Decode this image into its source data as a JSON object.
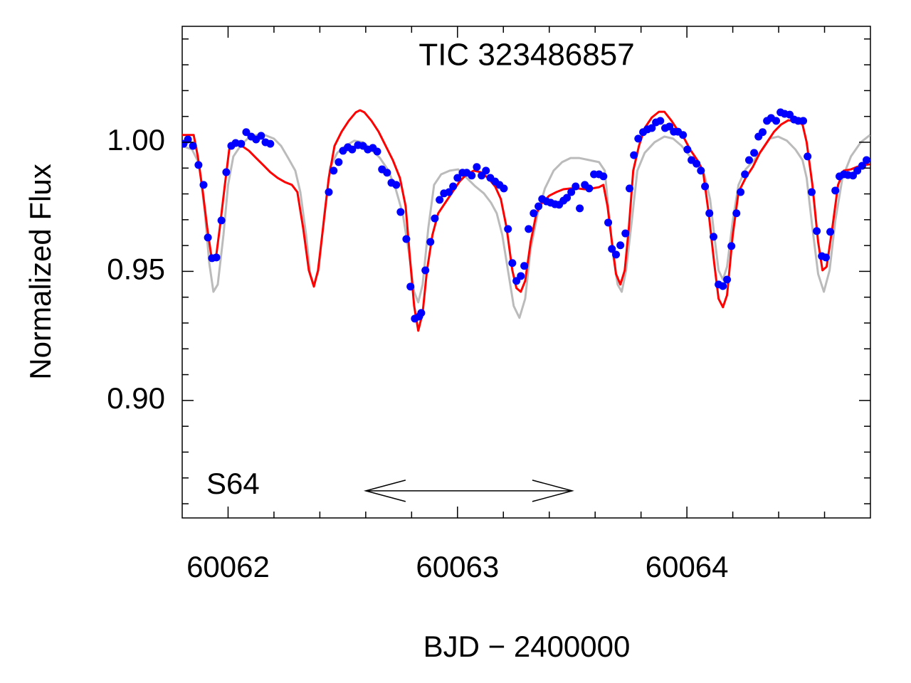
{
  "chart_data": {
    "type": "scatter",
    "title": "TIC 323486857",
    "xlabel": "BJD − 2400000",
    "ylabel": "Normalized Flux",
    "xlim": [
      60061.8,
      60064.8
    ],
    "ylim": [
      0.8545,
      1.0449
    ],
    "xticks": [
      60062,
      60063,
      60064
    ],
    "xminor": [
      60062.2,
      60062.4,
      60062.6,
      60062.8,
      60063.2,
      60063.4,
      60063.6,
      60063.8,
      60064.2,
      60064.4,
      60064.6
    ],
    "yticks": [
      {
        "value": 0.9,
        "label": "0.90"
      },
      {
        "value": 0.95,
        "label": "0.95"
      },
      {
        "value": 1.0,
        "label": "1.00"
      }
    ],
    "yminor": [
      0.86,
      0.87,
      0.88,
      0.89,
      0.91,
      0.92,
      0.93,
      0.94,
      0.96,
      0.97,
      0.98,
      0.99,
      1.01,
      1.02,
      1.03,
      1.04
    ],
    "annotations": [
      {
        "text": "S64"
      }
    ],
    "arrow": {
      "x": [
        60062.6,
        60063.5
      ],
      "y": 0.865
    },
    "series": [
      {
        "type": "scatter",
        "color": "#0000ff",
        "x": [
          60061.806,
          60061.825,
          60061.847,
          60061.871,
          60061.893,
          60061.912,
          60061.93,
          60061.949,
          60061.971,
          60061.992,
          60062.014,
          60062.033,
          60062.057,
          60062.079,
          60062.101,
          60062.122,
          60062.144,
          60062.163,
          60062.184,
          60062.439,
          60062.46,
          60062.482,
          60062.501,
          60062.522,
          60062.541,
          60062.566,
          60062.588,
          60062.609,
          60062.631,
          60062.65,
          60062.671,
          60062.693,
          60062.712,
          60062.733,
          60062.752,
          60062.777,
          60062.795,
          60062.814,
          60062.833,
          60062.842,
          60062.86,
          60062.882,
          60062.901,
          60062.922,
          60062.941,
          60062.963,
          60062.981,
          60063.0,
          60063.022,
          60063.04,
          60063.062,
          60063.084,
          60063.105,
          60063.124,
          60063.143,
          60063.164,
          60063.183,
          60063.202,
          60063.22,
          60063.239,
          60063.257,
          60063.276,
          60063.291,
          60063.31,
          60063.332,
          60063.353,
          60063.369,
          60063.388,
          60063.406,
          60063.425,
          60063.443,
          60063.462,
          60063.477,
          60063.496,
          60063.515,
          60063.533,
          60063.555,
          60063.574,
          60063.595,
          60063.617,
          60063.636,
          60063.657,
          60063.673,
          60063.691,
          60063.71,
          60063.732,
          60063.75,
          60063.769,
          60063.788,
          60063.809,
          60063.828,
          60063.847,
          60063.865,
          60063.884,
          60063.905,
          60063.924,
          60063.943,
          60063.961,
          60063.983,
          60064.002,
          60064.02,
          60064.042,
          60064.061,
          60064.079,
          60064.098,
          60064.116,
          60064.138,
          60064.157,
          60064.175,
          60064.194,
          60064.216,
          60064.234,
          60064.253,
          60064.271,
          60064.293,
          60064.312,
          60064.33,
          60064.349,
          60064.367,
          60064.389,
          60064.408,
          60064.426,
          60064.448,
          60064.467,
          60064.485,
          60064.507,
          60064.526,
          60064.544,
          60064.566,
          60064.588,
          60064.606,
          60064.625,
          60064.647,
          60064.665,
          60064.684,
          60064.702,
          60064.724,
          60064.743,
          60064.764,
          60064.783
        ],
        "values": [
          0.9994,
          1.0011,
          0.9986,
          0.9912,
          0.9835,
          0.9631,
          0.9551,
          0.9554,
          0.9697,
          0.9884,
          0.9986,
          0.9997,
          0.9994,
          1.0039,
          1.0022,
          1.0011,
          1.0025,
          1.0,
          0.9994,
          0.9807,
          0.989,
          0.9923,
          0.9967,
          0.9981,
          0.9972,
          0.9989,
          0.9986,
          0.9972,
          0.9978,
          0.9964,
          0.9895,
          0.9882,
          0.9843,
          0.9835,
          0.973,
          0.9625,
          0.9441,
          0.9317,
          0.9325,
          0.9339,
          0.9504,
          0.9614,
          0.9705,
          0.9777,
          0.9802,
          0.9807,
          0.9829,
          0.9862,
          0.9882,
          0.9882,
          0.9871,
          0.9904,
          0.9871,
          0.989,
          0.9862,
          0.9848,
          0.9835,
          0.9821,
          0.9664,
          0.9532,
          0.9463,
          0.9482,
          0.9521,
          0.9664,
          0.9725,
          0.9752,
          0.978,
          0.9771,
          0.9766,
          0.976,
          0.9758,
          0.9774,
          0.9785,
          0.9807,
          0.9829,
          0.9744,
          0.9835,
          0.9821,
          0.9876,
          0.9876,
          0.9868,
          0.9689,
          0.9587,
          0.9565,
          0.9601,
          0.9647,
          0.9821,
          0.995,
          1.0014,
          1.0039,
          1.005,
          1.0055,
          1.0077,
          1.0083,
          1.0055,
          1.0061,
          1.0041,
          1.0041,
          1.0028,
          0.9972,
          0.9931,
          0.9917,
          0.989,
          0.9829,
          0.9725,
          0.9634,
          0.9449,
          0.9443,
          0.9468,
          0.9598,
          0.9725,
          0.9807,
          0.9876,
          0.9931,
          0.9959,
          1.0022,
          1.0039,
          1.0083,
          1.0094,
          1.0083,
          1.0116,
          1.011,
          1.0107,
          1.0088,
          1.0083,
          1.0083,
          0.9945,
          0.9807,
          0.9656,
          0.9559,
          0.9554,
          0.9653,
          0.9813,
          0.9868,
          0.9876,
          0.9873,
          0.9871,
          0.989,
          0.9909,
          0.9931
        ]
      },
      {
        "type": "line",
        "color": "#bbbbbb",
        "x": [
          60061.8,
          60061.843,
          60061.874,
          60061.899,
          60061.918,
          60061.936,
          60061.955,
          60061.98,
          60062.0,
          60062.023,
          60062.054,
          60062.085,
          60062.122,
          60062.16,
          60062.2,
          60062.231,
          60062.262,
          60062.293,
          60062.315,
          60062.34,
          60062.358,
          60062.374,
          60062.395,
          60062.42,
          60062.445,
          60062.476,
          60062.513,
          60062.55,
          60062.588,
          60062.625,
          60062.662,
          60062.699,
          60062.73,
          60062.761,
          60062.786,
          60062.811,
          60062.829,
          60062.848,
          60062.873,
          60062.898,
          60062.929,
          60062.966,
          60063.003,
          60063.04,
          60063.078,
          60063.115,
          60063.146,
          60063.171,
          60063.195,
          60063.22,
          60063.245,
          60063.27,
          60063.295,
          60063.319,
          60063.35,
          60063.381,
          60063.419,
          60063.456,
          60063.493,
          60063.53,
          60063.574,
          60063.617,
          60063.642,
          60063.66,
          60063.679,
          60063.698,
          60063.716,
          60063.735,
          60063.76,
          60063.784,
          60063.816,
          60063.859,
          60063.902,
          60063.94,
          60063.977,
          60064.014,
          60064.045,
          60064.076,
          60064.101,
          60064.119,
          60064.138,
          60064.157,
          60064.175,
          60064.2,
          60064.225,
          60064.256,
          60064.293,
          60064.33,
          60064.361,
          60064.398,
          60064.436,
          60064.473,
          60064.504,
          60064.522,
          60064.547,
          60064.572,
          60064.597,
          60064.622,
          60064.647,
          60064.678,
          60064.715,
          60064.758,
          60064.798
        ],
        "values": [
          0.9986,
          0.9972,
          0.9917,
          0.9725,
          0.9532,
          0.9421,
          0.9449,
          0.9642,
          0.9835,
          0.9945,
          0.9986,
          1.0014,
          1.0028,
          1.0028,
          1.0014,
          0.9986,
          0.9939,
          0.989,
          0.9807,
          0.9642,
          0.949,
          0.9449,
          0.9504,
          0.9725,
          0.9904,
          0.9959,
          0.9986,
          1.0006,
          1.0,
          0.9972,
          0.9939,
          0.989,
          0.9821,
          0.9725,
          0.9587,
          0.9421,
          0.938,
          0.9449,
          0.9669,
          0.9835,
          0.9876,
          0.989,
          0.9895,
          0.9862,
          0.9829,
          0.9802,
          0.9766,
          0.9725,
          0.9642,
          0.9504,
          0.9366,
          0.932,
          0.9394,
          0.9587,
          0.9725,
          0.9821,
          0.989,
          0.9923,
          0.9939,
          0.9939,
          0.9931,
          0.9923,
          0.989,
          0.9725,
          0.9559,
          0.9449,
          0.9421,
          0.9504,
          0.9697,
          0.989,
          0.9959,
          1.0,
          1.0022,
          1.0014,
          0.9986,
          0.9945,
          0.9917,
          0.9876,
          0.978,
          0.9642,
          0.9504,
          0.9468,
          0.9518,
          0.9697,
          0.9835,
          0.9895,
          0.9931,
          0.9972,
          1.0014,
          1.0022,
          1.0006,
          0.9972,
          0.9931,
          0.9862,
          0.9669,
          0.949,
          0.9421,
          0.9504,
          0.9697,
          0.9862,
          0.9945,
          1.0,
          1.0028
        ]
      },
      {
        "type": "line",
        "color": "#ff0000",
        "x": [
          60061.8,
          60061.85,
          60061.868,
          60061.89,
          60061.909,
          60061.927,
          60061.946,
          60061.964,
          60061.986,
          60062.005,
          60062.029,
          60062.06,
          60062.091,
          60062.122,
          60062.153,
          60062.184,
          60062.216,
          60062.247,
          60062.278,
          60062.302,
          60062.327,
          60062.352,
          60062.374,
          60062.392,
          60062.414,
          60062.439,
          60062.464,
          60062.495,
          60062.526,
          60062.557,
          60062.575,
          60062.594,
          60062.625,
          60062.656,
          60062.687,
          60062.718,
          60062.749,
          60062.774,
          60062.792,
          60062.811,
          60062.829,
          60062.848,
          60062.867,
          60062.891,
          60062.916,
          60062.947,
          60062.978,
          60063.009,
          60063.04,
          60063.071,
          60063.102,
          60063.133,
          60063.164,
          60063.189,
          60063.214,
          60063.239,
          60063.257,
          60063.276,
          60063.295,
          60063.319,
          60063.344,
          60063.369,
          60063.4,
          60063.431,
          60063.462,
          60063.493,
          60063.524,
          60063.555,
          60063.586,
          60063.617,
          60063.636,
          60063.654,
          60063.673,
          60063.691,
          60063.71,
          60063.729,
          60063.747,
          60063.766,
          60063.791,
          60063.816,
          60063.847,
          60063.878,
          60063.902,
          60063.933,
          60063.964,
          60063.989,
          60064.014,
          60064.045,
          60064.07,
          60064.095,
          60064.119,
          60064.138,
          60064.157,
          60064.175,
          60064.2,
          60064.225,
          60064.256,
          60064.287,
          60064.318,
          60064.349,
          60064.38,
          60064.411,
          60064.442,
          60064.473,
          60064.504,
          60064.522,
          60064.547,
          60064.572,
          60064.591,
          60064.609,
          60064.634,
          60064.659,
          60064.684,
          60064.715,
          60064.746,
          60064.777,
          60064.798
        ],
        "values": [
          1.0028,
          1.0028,
          0.9945,
          0.9807,
          0.9669,
          0.9559,
          0.9545,
          0.9669,
          0.9835,
          0.9972,
          0.9994,
          0.9986,
          0.9967,
          0.9939,
          0.9912,
          0.9884,
          0.9862,
          0.9846,
          0.9835,
          0.9807,
          0.9669,
          0.9504,
          0.9441,
          0.9504,
          0.9669,
          0.9862,
          0.9986,
          1.0041,
          1.0083,
          1.0116,
          1.0124,
          1.0116,
          1.0083,
          1.0041,
          0.9986,
          0.9931,
          0.9862,
          0.9752,
          0.9559,
          0.9366,
          0.927,
          0.9339,
          0.9504,
          0.9642,
          0.9725,
          0.9766,
          0.9807,
          0.9848,
          0.9876,
          0.989,
          0.9884,
          0.9862,
          0.9829,
          0.978,
          0.9669,
          0.9504,
          0.9435,
          0.9421,
          0.9463,
          0.9614,
          0.9725,
          0.9766,
          0.9793,
          0.9807,
          0.9818,
          0.9821,
          0.9821,
          0.9818,
          0.9821,
          0.9826,
          0.9835,
          0.9752,
          0.9614,
          0.949,
          0.9449,
          0.9504,
          0.9669,
          0.989,
          0.9986,
          1.0055,
          1.0096,
          1.0118,
          1.0118,
          1.0083,
          1.0041,
          1.0014,
          0.9972,
          0.9931,
          0.989,
          0.9725,
          0.9532,
          0.9394,
          0.9361,
          0.9408,
          0.9642,
          0.9807,
          0.9862,
          0.9904,
          0.9959,
          1.0,
          1.0041,
          1.0069,
          1.0085,
          1.0083,
          1.0069,
          1.0,
          0.9835,
          0.9614,
          0.9504,
          0.9518,
          0.9669,
          0.9835,
          0.989,
          0.9895,
          0.9906,
          0.9912,
          0.9915
        ]
      }
    ]
  }
}
